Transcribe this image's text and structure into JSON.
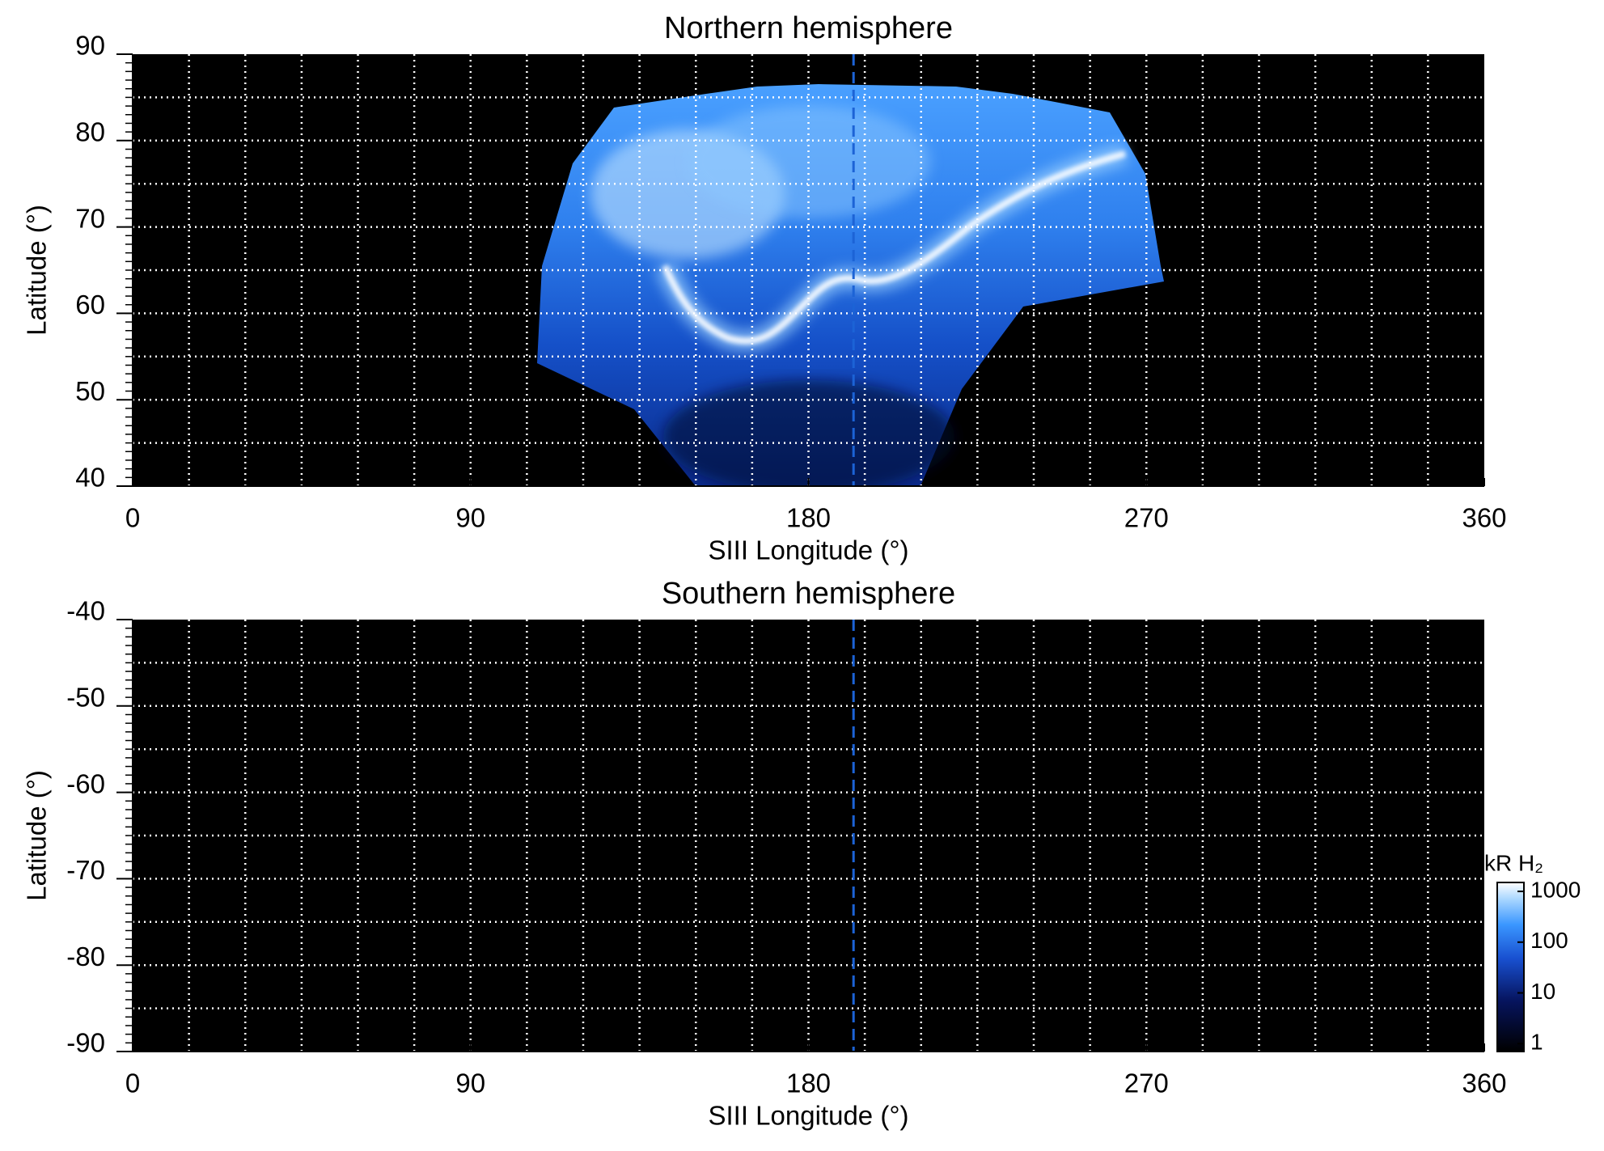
{
  "chart_data": [
    {
      "type": "image",
      "title": "Northern hemisphere",
      "xlabel": "SIII Longitude (°)",
      "ylabel": "Latitude (°)",
      "xlim": [
        0,
        360
      ],
      "xticks": [
        0,
        90,
        180,
        270,
        360
      ],
      "ylim": [
        40,
        90
      ],
      "yticks": [
        40,
        50,
        60,
        70,
        80,
        90
      ],
      "grid": true,
      "grid_step": [
        15,
        5
      ],
      "yminor_step": 1,
      "vlines": [
        192
      ],
      "vline_color": "#1c63d6"
    },
    {
      "type": "image",
      "title": "Southern hemisphere",
      "xlabel": "SIII Longitude (°)",
      "ylabel": "Latitude (°)",
      "xlim": [
        0,
        360
      ],
      "xticks": [
        0,
        90,
        180,
        270,
        360
      ],
      "ylim": [
        -90,
        -40
      ],
      "yticks": [
        -90,
        -80,
        -70,
        -60,
        -50,
        -40
      ],
      "grid": true,
      "grid_step": [
        15,
        5
      ],
      "yminor_step": 1,
      "vlines": [
        192
      ],
      "vline_color": "#1c63d6",
      "colorbar": {
        "label": "kR H₂",
        "scale": "log",
        "lim": [
          0.7,
          1500
        ],
        "ticks": [
          1,
          10,
          100,
          1000
        ]
      }
    }
  ]
}
